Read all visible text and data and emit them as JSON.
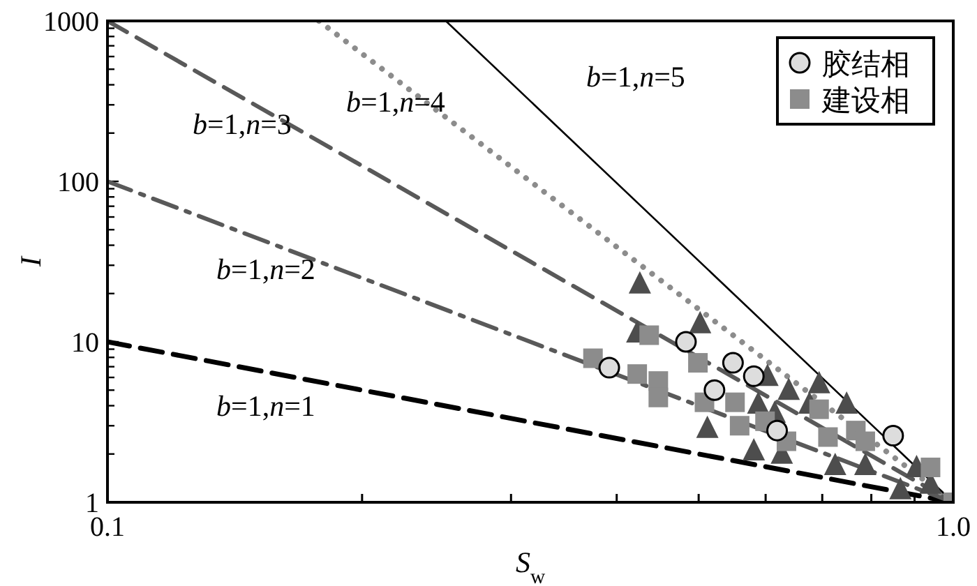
{
  "chart_data": {
    "type": "scatter",
    "xlabel": "*S*$_{w}$",
    "ylabel": "I",
    "log": "xy",
    "grid": false,
    "legend": "top right",
    "xlim": [
      0.1,
      1
    ],
    "ylim": [
      1,
      1000
    ],
    "xticks": [
      0.1,
      {
        "value": 0.2,
        "label": null
      },
      {
        "value": 0.3,
        "label": null
      },
      {
        "value": 0.4,
        "label": null
      },
      {
        "value": 0.5,
        "label": null
      },
      {
        "value": 0.6,
        "label": null
      },
      {
        "value": 0.7,
        "label": null
      },
      {
        "value": 0.8,
        "label": null
      },
      {
        "value": 0.9,
        "label": null
      },
      {
        "value": 1,
        "label": "1.0"
      }
    ],
    "yticks": [
      1,
      {
        "value": 2,
        "label": null
      },
      {
        "value": 3,
        "label": null
      },
      {
        "value": 4,
        "label": null
      },
      {
        "value": 5,
        "label": null
      },
      {
        "value": 6,
        "label": null
      },
      {
        "value": 7,
        "label": null
      },
      {
        "value": 8,
        "label": null
      },
      {
        "value": 9,
        "label": null
      },
      10,
      {
        "value": 20,
        "label": null
      },
      {
        "value": 30,
        "label": null
      },
      {
        "value": 40,
        "label": null
      },
      {
        "value": 50,
        "label": null
      },
      {
        "value": 60,
        "label": null
      },
      {
        "value": 70,
        "label": null
      },
      {
        "value": 80,
        "label": null
      },
      {
        "value": 90,
        "label": null
      },
      100,
      {
        "value": 200,
        "label": null
      },
      {
        "value": 300,
        "label": null
      },
      {
        "value": 400,
        "label": null
      },
      {
        "value": 500,
        "label": null
      },
      {
        "value": 600,
        "label": null
      },
      {
        "value": 700,
        "label": null
      },
      {
        "value": 800,
        "label": null
      },
      {
        "value": 900,
        "label": null
      },
      1000
    ],
    "series": [
      {
        "type": "line",
        "color": "#000000",
        "line_style": "dashed",
        "x": [
          0.1,
          1
        ],
        "values": [
          10,
          1
        ]
      },
      {
        "type": "line",
        "color": "#595959",
        "line_style": "dashdot",
        "x": [
          0.1,
          1
        ],
        "values": [
          100,
          1
        ]
      },
      {
        "type": "line",
        "color": "#595959",
        "line_style": "dashed",
        "x": [
          0.1,
          1
        ],
        "values": [
          1000,
          1
        ]
      },
      {
        "type": "line",
        "color": "#8c8c8c",
        "line_style": "dotted",
        "x": [
          0.1778,
          1
        ],
        "values": [
          1000,
          1
        ]
      },
      {
        "type": "line",
        "color": "#000000",
        "line_style": "solid",
        "x": [
          0.2512,
          1
        ],
        "values": [
          1000,
          1
        ]
      },
      {
        "marker": "triangle",
        "color": "#4d4d4d",
        "x": [
          0.426,
          0.423,
          0.502,
          0.603,
          0.639,
          0.694,
          0.588,
          0.615,
          0.676,
          0.748,
          0.512,
          0.581,
          0.627,
          0.725,
          0.787,
          0.866,
          0.905,
          0.94
        ],
        "values": [
          23,
          11.4,
          13,
          6.1,
          5,
          5.5,
          4.1,
          3.6,
          4.1,
          4.1,
          2.9,
          2.1,
          2,
          1.7,
          1.7,
          1.2,
          1.65,
          1.3
        ]
      },
      {
        "name": "建设相",
        "marker": "square",
        "color": "#8c8c8c",
        "x": [
          0.375,
          0.437,
          0.423,
          0.448,
          0.448,
          0.499,
          0.508,
          0.552,
          0.559,
          0.599,
          0.635,
          0.694,
          0.711,
          0.767,
          0.787,
          0.94,
          1
        ],
        "values": [
          7.9,
          11,
          6.3,
          5.7,
          4.5,
          7.4,
          4.2,
          4.2,
          3,
          3.2,
          2.4,
          3.8,
          2.55,
          2.8,
          2.4,
          1.65,
          1
        ]
      },
      {
        "name": "胶结相",
        "marker": "circle",
        "color": "#dddddd",
        "x": [
          0.392,
          0.483,
          0.549,
          0.581,
          0.522,
          0.619,
          0.849
        ],
        "values": [
          6.9,
          10,
          7.4,
          6.1,
          5,
          2.8,
          2.6
        ]
      }
    ],
    "annotations": [
      "*b*=1,*n*=1",
      "*b*=1,*n*=2",
      "*b*=1,*n*=3",
      "*b*=1,*n*=4",
      "*b*=1,*n*=5"
    ]
  }
}
